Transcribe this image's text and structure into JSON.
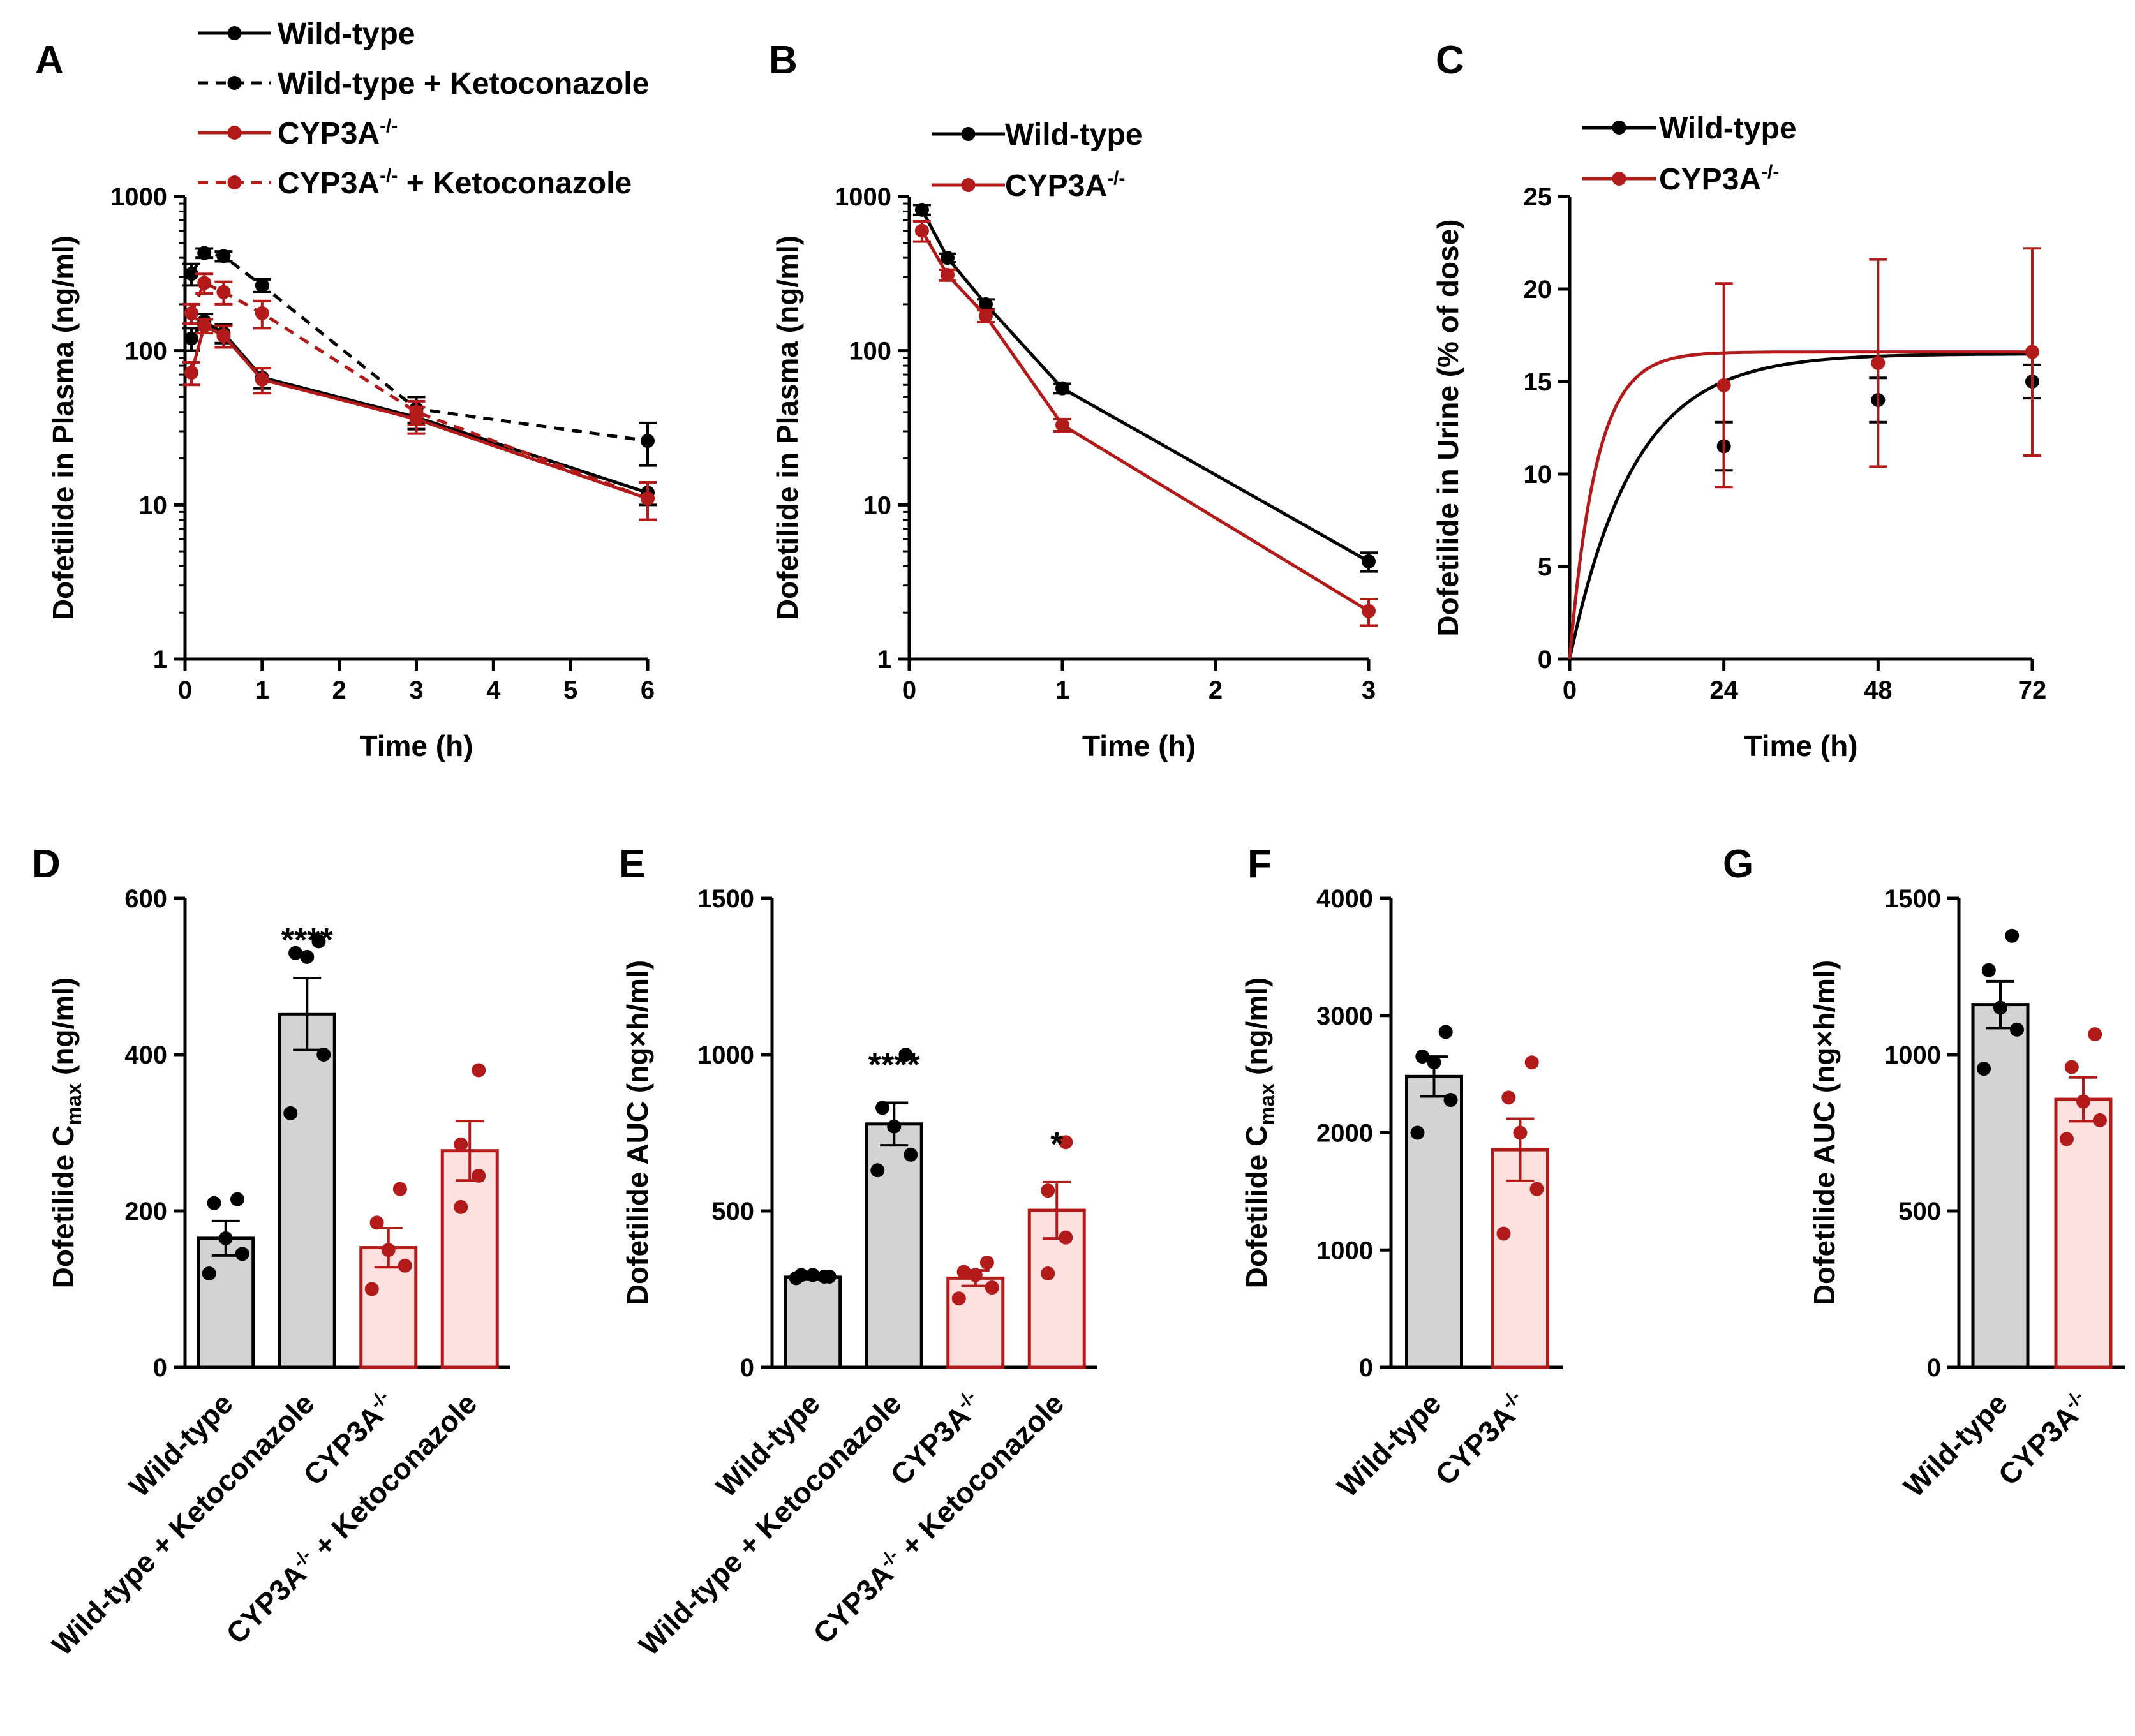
{
  "figure": {
    "colors": {
      "wt": "#000000",
      "ko": "#b31b1b",
      "wt_bar": "#d3d3d3",
      "ko_bar": "#fde0e0"
    }
  },
  "chart_data": [
    {
      "id": "A",
      "type": "line",
      "panel_label": "A",
      "yscale": "log",
      "xlabel": "Time (h)",
      "ylabel": "Dofetilide in Plasma (ng/ml)",
      "xlim": [
        0,
        6
      ],
      "ylim": [
        1,
        1000
      ],
      "xticks": [
        0,
        1,
        2,
        3,
        4,
        5,
        6
      ],
      "yticks": [
        1,
        10,
        100,
        1000
      ],
      "series": [
        {
          "name": "Wild-type",
          "color": "#000000",
          "dashed": false,
          "x": [
            0.083,
            0.25,
            0.5,
            1,
            3,
            6
          ],
          "y": [
            120,
            155,
            130,
            67,
            37,
            12
          ],
          "err": [
            20,
            18,
            18,
            10,
            6,
            2
          ]
        },
        {
          "name": "Wild-type + Ketoconazole",
          "color": "#000000",
          "dashed": true,
          "x": [
            0.083,
            0.25,
            0.5,
            1,
            3,
            6
          ],
          "y": [
            315,
            430,
            410,
            265,
            42,
            26
          ],
          "err": [
            50,
            30,
            30,
            25,
            8,
            8
          ]
        },
        {
          "name": "CYP3A",
          "sup": "-/-",
          "color": "#b31b1b",
          "dashed": false,
          "x": [
            0.083,
            0.25,
            0.5,
            1,
            3,
            6
          ],
          "y": [
            72,
            145,
            125,
            65,
            36,
            11
          ],
          "err": [
            12,
            15,
            20,
            12,
            7,
            3
          ]
        },
        {
          "name": "CYP3A",
          "sup": "-/-",
          "suffix": " + Ketoconazole",
          "color": "#b31b1b",
          "dashed": true,
          "x": [
            0.083,
            0.25,
            0.5,
            1,
            3,
            6
          ],
          "y": [
            175,
            275,
            240,
            175,
            40,
            11
          ],
          "err": [
            25,
            40,
            40,
            35,
            7,
            3
          ]
        }
      ]
    },
    {
      "id": "B",
      "type": "line",
      "panel_label": "B",
      "yscale": "log",
      "xlabel": "Time (h)",
      "ylabel": "Dofetilide in Plasma (ng/ml)",
      "xlim": [
        0,
        3
      ],
      "ylim": [
        1,
        1000
      ],
      "xticks": [
        0,
        1,
        2,
        3
      ],
      "yticks": [
        1,
        10,
        100,
        1000
      ],
      "series": [
        {
          "name": "Wild-type",
          "color": "#000000",
          "dashed": false,
          "x": [
            0.083,
            0.25,
            0.5,
            1,
            3
          ],
          "y": [
            820,
            400,
            200,
            57,
            4.3
          ],
          "err": [
            60,
            25,
            15,
            4,
            0.6
          ]
        },
        {
          "name": "CYP3A",
          "sup": "-/-",
          "color": "#b31b1b",
          "dashed": false,
          "x": [
            0.083,
            0.25,
            0.5,
            1,
            3
          ],
          "y": [
            600,
            310,
            168,
            33,
            2.05
          ],
          "err": [
            90,
            25,
            15,
            3,
            0.4
          ]
        }
      ]
    },
    {
      "id": "C",
      "type": "line",
      "panel_label": "C",
      "yscale": "linear",
      "xlabel": "Time (h)",
      "ylabel": "Dofetilide in Urine (% of dose)",
      "xlim": [
        0,
        72
      ],
      "ylim": [
        0,
        25
      ],
      "xticks": [
        0,
        24,
        48,
        72
      ],
      "yticks": [
        0,
        5,
        10,
        15,
        20,
        25
      ],
      "series": [
        {
          "name": "Wild-type",
          "color": "#000000",
          "dashed": false,
          "x": [
            24,
            48,
            72
          ],
          "y": [
            11.5,
            14.0,
            15.0
          ],
          "err": [
            1.3,
            1.2,
            0.9
          ],
          "fit": {
            "ymax": 16.5,
            "k": 0.1
          }
        },
        {
          "name": "CYP3A",
          "sup": "-/-",
          "color": "#b31b1b",
          "dashed": false,
          "x": [
            24,
            48,
            72
          ],
          "y": [
            14.8,
            16.0,
            16.6
          ],
          "err": [
            5.5,
            5.6,
            5.6
          ],
          "fit": {
            "ymax": 16.6,
            "k": 0.24
          }
        }
      ]
    },
    {
      "id": "D",
      "type": "bar",
      "panel_label": "D",
      "ylabel_main": "Dofetilide C",
      "ylabel_sub": "max",
      "ylabel_tail": " (ng/ml)",
      "ylim": [
        0,
        600
      ],
      "yticks": [
        0,
        200,
        400,
        600
      ],
      "bars": [
        {
          "label": "Wild-type",
          "color": "wt",
          "mean": 165,
          "sem": 22,
          "points": [
            120,
            145,
            165,
            210,
            215
          ],
          "annotation": ""
        },
        {
          "label": "Wild-type + Ketoconazole",
          "color": "wt",
          "mean": 452,
          "sem": 46,
          "points": [
            325,
            400,
            525,
            530,
            545
          ],
          "annotation": "****"
        },
        {
          "label": "CYP3A",
          "sup": "-/-",
          "color": "ko",
          "mean": 153,
          "sem": 25,
          "points": [
            100,
            130,
            150,
            185,
            228
          ],
          "annotation": ""
        },
        {
          "label": "CYP3A",
          "sup": "-/-",
          "suffix": " + Ketoconazole",
          "color": "ko",
          "mean": 277,
          "sem": 38,
          "points": [
            205,
            245,
            285,
            380
          ],
          "annotation": ""
        }
      ]
    },
    {
      "id": "E",
      "type": "bar",
      "panel_label": "E",
      "ylabel_main": "Dofetilide AUC (ng×h/ml)",
      "ylabel_sub": "",
      "ylabel_tail": "",
      "ylim": [
        0,
        1500
      ],
      "yticks": [
        0,
        500,
        1000,
        1500
      ],
      "bars": [
        {
          "label": "Wild-type",
          "color": "wt",
          "mean": 288,
          "sem": 8,
          "points": [
            285,
            290,
            295,
            295,
            290
          ],
          "annotation": ""
        },
        {
          "label": "Wild-type + Ketoconazole",
          "color": "wt",
          "mean": 778,
          "sem": 68,
          "points": [
            630,
            680,
            770,
            830,
            1000
          ],
          "annotation": "****"
        },
        {
          "label": "CYP3A",
          "sup": "-/-",
          "color": "ko",
          "mean": 285,
          "sem": 25,
          "points": [
            220,
            255,
            295,
            305,
            335
          ],
          "annotation": ""
        },
        {
          "label": "CYP3A",
          "sup": "-/-",
          "suffix": " + Ketoconazole",
          "color": "ko",
          "mean": 502,
          "sem": 90,
          "points": [
            300,
            415,
            565,
            720
          ],
          "annotation": "*"
        }
      ]
    },
    {
      "id": "F",
      "type": "bar",
      "panel_label": "F",
      "ylabel_main": "Dofetilide C",
      "ylabel_sub": "max",
      "ylabel_tail": " (ng/ml)",
      "ylim": [
        0,
        4000
      ],
      "yticks": [
        0,
        1000,
        2000,
        3000,
        4000
      ],
      "bars": [
        {
          "label": "Wild-type",
          "color": "wt",
          "mean": 2480,
          "sem": 170,
          "points": [
            2000,
            2280,
            2600,
            2650,
            2860
          ],
          "annotation": ""
        },
        {
          "label": "CYP3A",
          "sup": "-/-",
          "color": "ko",
          "mean": 1855,
          "sem": 265,
          "points": [
            1140,
            1520,
            2000,
            2300,
            2600
          ],
          "annotation": ""
        }
      ]
    },
    {
      "id": "G",
      "type": "bar",
      "panel_label": "G",
      "ylabel_main": "Dofetilide AUC (ng×h/ml)",
      "ylabel_sub": "",
      "ylabel_tail": "",
      "ylim": [
        0,
        1500
      ],
      "yticks": [
        0,
        500,
        1000,
        1500
      ],
      "bars": [
        {
          "label": "Wild-type",
          "color": "wt",
          "mean": 1160,
          "sem": 75,
          "points": [
            955,
            1080,
            1150,
            1270,
            1380
          ],
          "annotation": ""
        },
        {
          "label": "CYP3A",
          "sup": "-/-",
          "color": "ko",
          "mean": 857,
          "sem": 70,
          "points": [
            730,
            790,
            850,
            960,
            1065
          ],
          "annotation": ""
        }
      ]
    }
  ]
}
